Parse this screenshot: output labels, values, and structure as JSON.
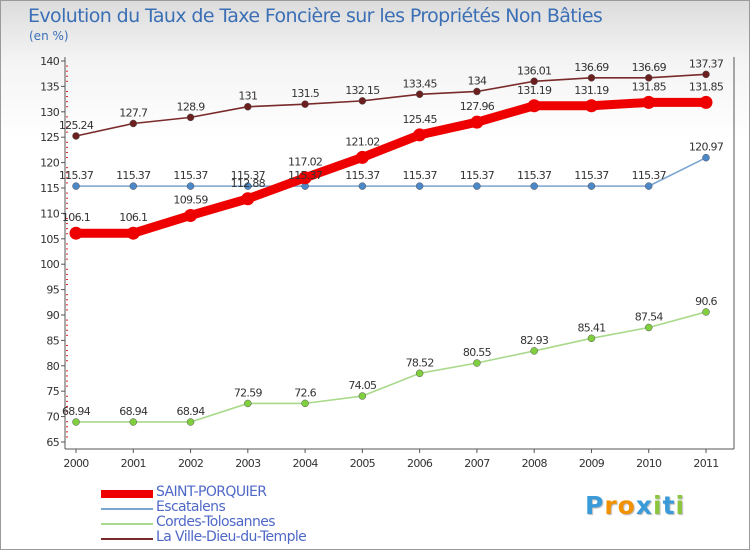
{
  "chart_data": {
    "type": "line",
    "title": "Evolution du Taux de Taxe Foncière sur les Propriétés Non Bâties",
    "ylabel": "(en %)",
    "xlabel": "",
    "ylim": [
      65,
      140
    ],
    "yticks": [
      "65",
      "70",
      "75",
      "80",
      "85",
      "90",
      "95",
      "100",
      "105",
      "110",
      "115",
      "120",
      "125",
      "130",
      "135",
      "140"
    ],
    "categories": [
      "2000",
      "2001",
      "2002",
      "2003",
      "2004",
      "2005",
      "2006",
      "2007",
      "2008",
      "2009",
      "2010",
      "2011"
    ],
    "grid": false,
    "series": [
      {
        "name": "La Ville-Dieu-du-Temple",
        "color": "#7a2a2a",
        "marker": "#6b1f1f",
        "values": [
          125.24,
          127.7,
          128.9,
          131,
          131.5,
          132.15,
          133.45,
          134,
          136.01,
          136.69,
          136.69,
          137.37
        ],
        "labels": [
          "125.24",
          "127.7",
          "128.9",
          "131",
          "131.5",
          "132.15",
          "133.45",
          "134",
          "136.01",
          "136.69",
          "136.69",
          "137.37"
        ]
      },
      {
        "name": "Escatalens",
        "color": "#7aa5cf",
        "marker": "#4c87c7",
        "values": [
          115.37,
          115.37,
          115.37,
          115.37,
          115.37,
          115.37,
          115.37,
          115.37,
          115.37,
          115.37,
          115.37,
          120.97
        ],
        "labels": [
          "115.37",
          "115.37",
          "115.37",
          "115.37",
          "115.37",
          "115.37",
          "115.37",
          "115.37",
          "115.37",
          "115.37",
          "115.37",
          "120.97"
        ]
      },
      {
        "name": "Cordes-Tolosannes",
        "color": "#a9d98a",
        "marker": "#7fcf3f",
        "values": [
          68.94,
          68.94,
          68.94,
          72.59,
          72.6,
          74.05,
          78.52,
          80.55,
          82.93,
          85.41,
          87.54,
          90.6
        ],
        "labels": [
          "68.94",
          "68.94",
          "68.94",
          "72.59",
          "72.6",
          "74.05",
          "78.52",
          "80.55",
          "82.93",
          "85.41",
          "87.54",
          "90.6"
        ]
      },
      {
        "name": "SAINT-PORQUIER",
        "color": "#ee0000",
        "marker": "#ee0000",
        "values": [
          106.1,
          106.1,
          109.59,
          112.88,
          117.02,
          121.02,
          125.45,
          127.96,
          131.19,
          131.19,
          131.85,
          131.85
        ],
        "labels": [
          "106.1",
          "106.1",
          "109.59",
          "112.88",
          "117.02",
          "121.02",
          "125.45",
          "127.96",
          "131.19",
          "131.19",
          "131.85",
          "131.85"
        ]
      }
    ],
    "legend": [
      "SAINT-PORQUIER",
      "Escatalens",
      "Cordes-Tolosannes",
      "La Ville-Dieu-du-Temple"
    ],
    "legend_placement": "bottom-left"
  },
  "logo": {
    "letters": [
      "P",
      "r",
      "o",
      "x",
      "i",
      "t",
      "i"
    ],
    "colors": [
      "#3a9bd8",
      "#f29200",
      "#f29200",
      "#3a9bd8",
      "#8cc63f",
      "#3a9bd8",
      "#8cc63f"
    ]
  }
}
